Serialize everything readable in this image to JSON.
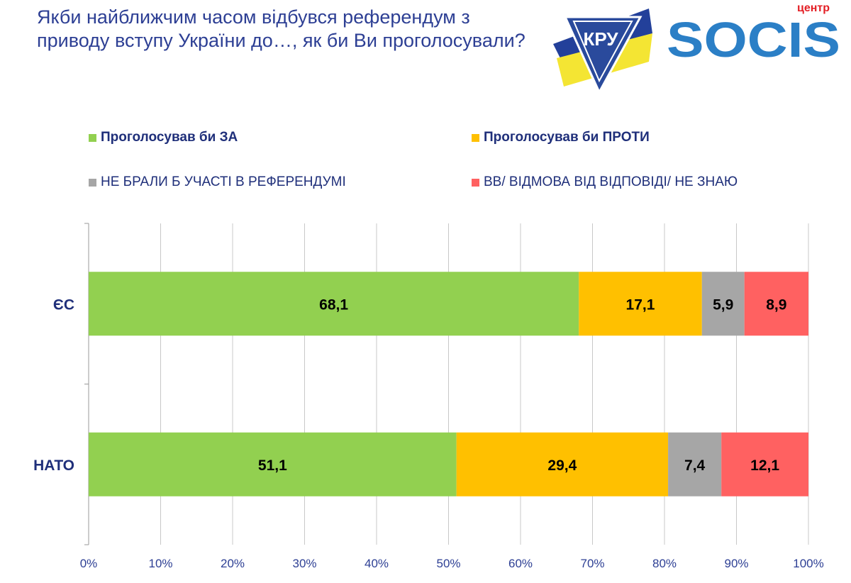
{
  "title": "Якби найближчим часом відбувся референдум з приводу вступу України до…, як би Ви проголосували?",
  "logos": {
    "kru": "КРУ",
    "socis_small": "центр",
    "socis": "SOCIS"
  },
  "colors": {
    "title": "#2d3f94",
    "za": "#92d050",
    "proty": "#ffc000",
    "ne_braly": "#a6a6a6",
    "vv": "#ff6161",
    "socis_blue": "#2b7fc6",
    "socis_red": "#e31e24"
  },
  "chart_data": {
    "type": "bar",
    "orientation": "horizontal",
    "stacked": "percent",
    "categories": [
      "ЄС",
      "НАТО"
    ],
    "series": [
      {
        "name": "Проголосував би ЗА",
        "values": [
          68.1,
          51.1
        ],
        "labels": [
          "68,1",
          "51,1"
        ],
        "color": "#92d050",
        "legend_bold": true
      },
      {
        "name": "Проголосував би ПРОТИ",
        "values": [
          17.1,
          29.4
        ],
        "labels": [
          "17,1",
          "29,4"
        ],
        "color": "#ffc000",
        "legend_bold": true
      },
      {
        "name": "НЕ БРАЛИ Б УЧАСТІ В РЕФЕРЕНДУМІ",
        "values": [
          5.9,
          7.4
        ],
        "labels": [
          "5,9",
          "7,4"
        ],
        "color": "#a6a6a6",
        "legend_bold": false
      },
      {
        "name": "ВВ/ ВІДМОВА ВІД ВІДПОВІДІ/ НЕ ЗНАЮ",
        "values": [
          8.9,
          12.1
        ],
        "labels": [
          "8,9",
          "12,1"
        ],
        "color": "#ff6161",
        "legend_bold": false
      }
    ],
    "xticks": [
      "0%",
      "10%",
      "20%",
      "30%",
      "40%",
      "50%",
      "60%",
      "70%",
      "80%",
      "90%",
      "100%"
    ],
    "xlim": [
      0,
      100
    ],
    "grid": true,
    "legend_position": "top"
  }
}
